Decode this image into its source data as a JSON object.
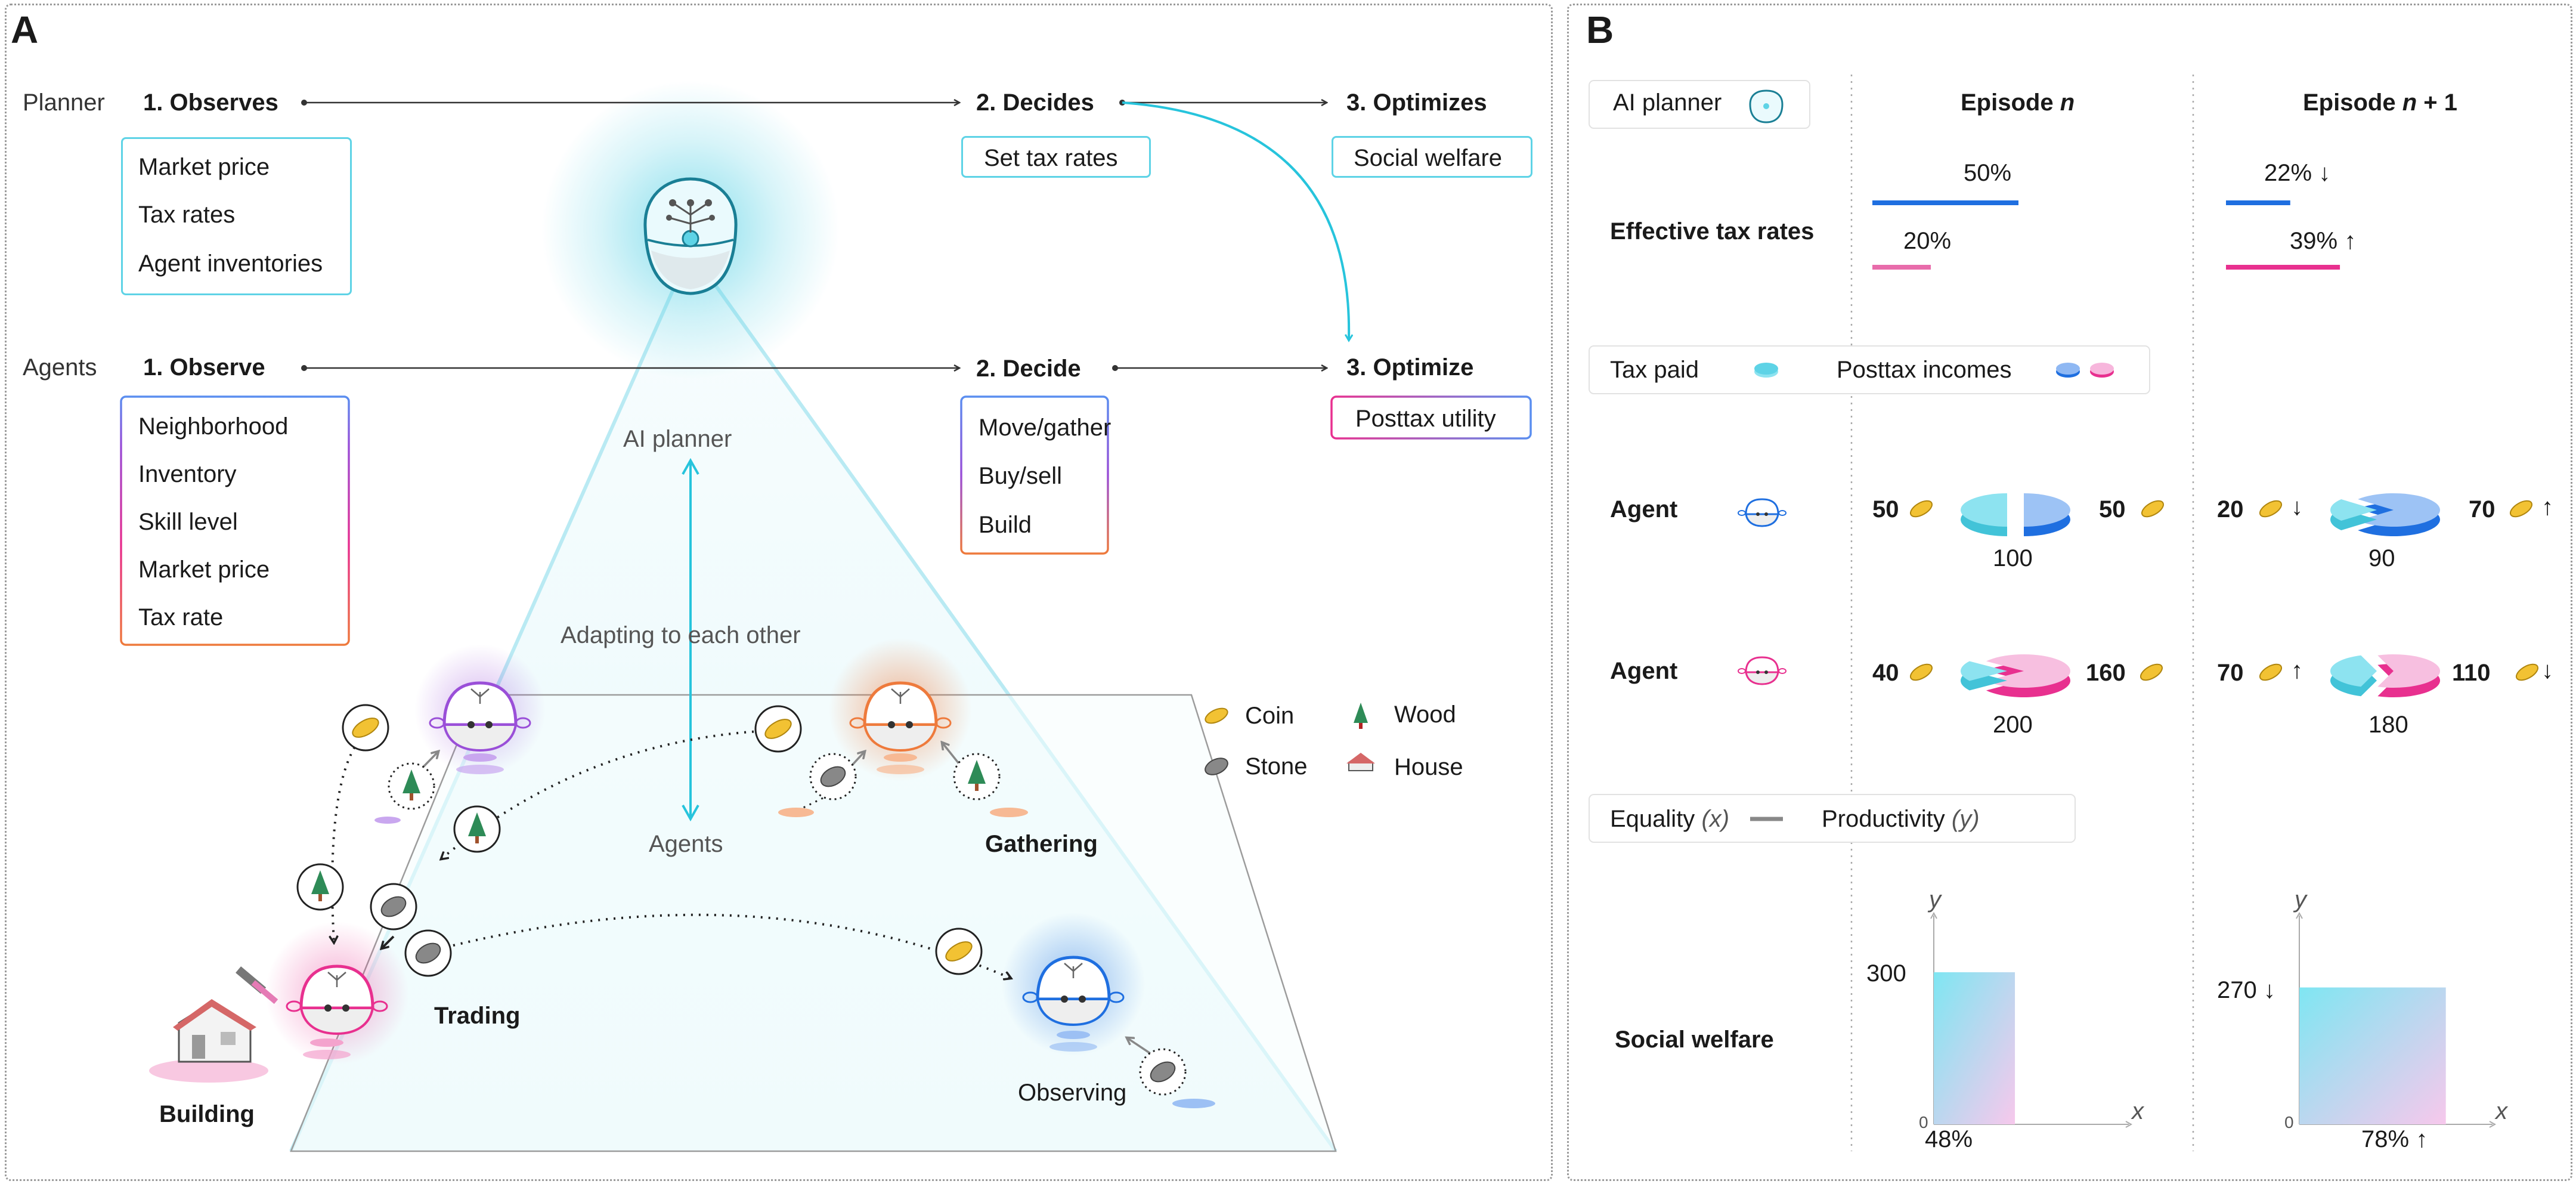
{
  "panel_a": {
    "label": "A",
    "planner_row": {
      "label": "Planner",
      "step1": "1. Observes",
      "step1_items": [
        "Market price",
        "Tax rates",
        "Agent inventories"
      ],
      "step2": "2. Decides",
      "step2_item": "Set tax rates",
      "step3": "3. Optimizes",
      "step3_item": "Social welfare"
    },
    "agents_row": {
      "label": "Agents",
      "step1": "1. Observe",
      "step1_items": [
        "Neighborhood",
        "Inventory",
        "Skill level",
        "Market price",
        "Tax rate"
      ],
      "step2": "2. Decide",
      "step2_items": [
        "Move/gather",
        "Buy/sell",
        "Build"
      ],
      "step3": "3. Optimize",
      "step3_item": "Posttax utility"
    },
    "scene": {
      "top_label": "AI planner",
      "middle_label": "Adapting to  each other",
      "bottom_label": "Agents",
      "activities": [
        "Gathering",
        "Trading",
        "Building",
        "Observing"
      ],
      "resource_legend": [
        "Coin",
        "Wood",
        "Stone",
        "House"
      ]
    }
  },
  "panel_b": {
    "label": "B",
    "planner_legend": "AI planner",
    "episode_n_prefix": "Episode ",
    "episode_n_var": "n",
    "episode_n1_prefix": "Episode ",
    "episode_n1_var": "n",
    "episode_n1_suffix": " + 1",
    "tax_row_label": "Effective tax rates",
    "tax_rates": {
      "episode_n": {
        "top": "50%",
        "bottom": "20%"
      },
      "episode_n1": {
        "top": "22%",
        "top_arrow": "↓",
        "bottom": "39%",
        "bottom_arrow": "↑"
      }
    },
    "tax_rate_values": {
      "episode_n": [
        50,
        20
      ],
      "episode_n1": [
        22,
        39
      ]
    },
    "pie_legend": {
      "tax": "Tax paid",
      "income": "Posttax incomes"
    },
    "agent_label": "Agent",
    "agent1": {
      "episode_n": {
        "tax": "50",
        "income": "50",
        "total": "100"
      },
      "episode_n1": {
        "tax": "20",
        "tax_arrow": "↓",
        "income": "70",
        "income_arrow": "↑",
        "total": "90"
      }
    },
    "agent2": {
      "episode_n": {
        "tax": "40",
        "income": "160",
        "total": "200"
      },
      "episode_n1": {
        "tax": "70",
        "tax_arrow": "↑",
        "income": "110",
        "income_arrow": "↓",
        "total": "180"
      }
    },
    "welfare_legend": {
      "equality": "Equality",
      "equality_var": "(x)",
      "productivity": "Productivity",
      "productivity_var": "(y)"
    },
    "welfare_label": "Social welfare",
    "welfare_charts": {
      "episode_n": {
        "y_axis": "y",
        "x_axis": "x",
        "origin": "0",
        "y_value": "300",
        "x_value": "48%",
        "equality": 48,
        "productivity": 300
      },
      "episode_n1": {
        "y_axis": "y",
        "x_axis": "x",
        "origin": "0",
        "y_value": "270",
        "y_arrow": "↓",
        "x_value": "78%",
        "x_arrow": "↑",
        "equality": 78,
        "productivity": 270
      }
    }
  },
  "colors": {
    "cyan": "#5ed3e6",
    "blue": "#1f6fe0",
    "pink": "#e8308f",
    "orange": "#ee7a3c",
    "purple": "#9a4fd8",
    "coin": "#f2c233"
  }
}
